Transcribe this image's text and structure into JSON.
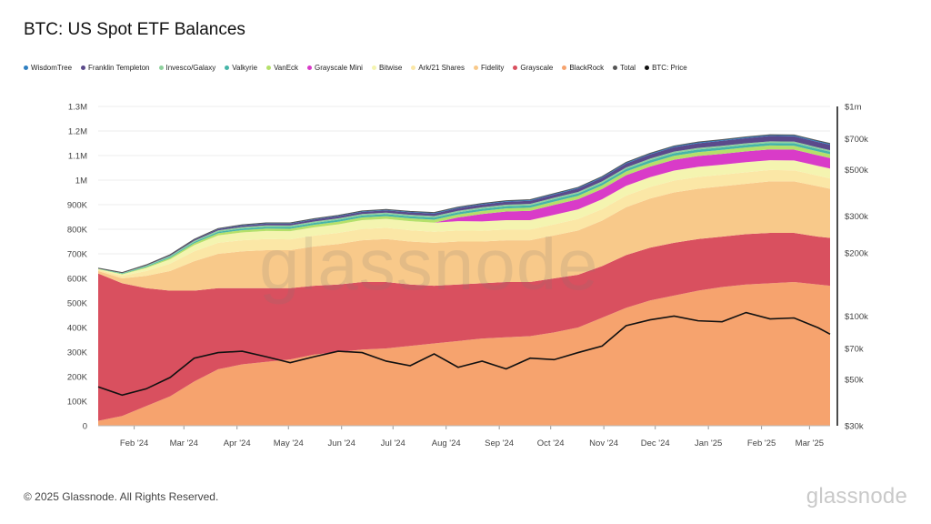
{
  "title": "BTC: US Spot ETF Balances",
  "footer": "© 2025 Glassnode. All Rights Reserved.",
  "brand": "glassnode",
  "legend": [
    {
      "label": "WisdomTree",
      "color": "#2f7fc1"
    },
    {
      "label": "Franklin Templeton",
      "color": "#5b4a8b"
    },
    {
      "label": "Invesco/Galaxy",
      "color": "#8fd19e"
    },
    {
      "label": "Valkyrie",
      "color": "#46b5a8"
    },
    {
      "label": "VanEck",
      "color": "#b5e06a"
    },
    {
      "label": "Grayscale Mini",
      "color": "#d93bc8"
    },
    {
      "label": "Bitwise",
      "color": "#f4f4b0"
    },
    {
      "label": "Ark/21 Shares",
      "color": "#fbe7a6"
    },
    {
      "label": "Fidelity",
      "color": "#f8c98a"
    },
    {
      "label": "Grayscale",
      "color": "#d9505f"
    },
    {
      "label": "BlackRock",
      "color": "#f6a36e"
    },
    {
      "label": "Total",
      "color": "#555555"
    },
    {
      "label": "BTC: Price",
      "color": "#111111"
    }
  ],
  "chart_data": {
    "type": "area",
    "title": "BTC: US Spot ETF Balances",
    "x": [
      "2024-01-11",
      "2024-01-25",
      "2024-02-08",
      "2024-02-22",
      "2024-03-07",
      "2024-03-21",
      "2024-04-04",
      "2024-04-18",
      "2024-05-02",
      "2024-05-16",
      "2024-05-30",
      "2024-06-13",
      "2024-06-27",
      "2024-07-11",
      "2024-07-25",
      "2024-08-08",
      "2024-08-22",
      "2024-09-05",
      "2024-09-19",
      "2024-10-03",
      "2024-10-17",
      "2024-10-31",
      "2024-11-14",
      "2024-11-28",
      "2024-12-12",
      "2024-12-26",
      "2025-01-09",
      "2025-01-23",
      "2025-02-06",
      "2025-02-20",
      "2025-03-06",
      "2025-03-13"
    ],
    "x_ticks": [
      "Feb '24",
      "Mar '24",
      "Apr '24",
      "May '24",
      "Jun '24",
      "Jul '24",
      "Aug '24",
      "Sep '24",
      "Oct '24",
      "Nov '24",
      "Dec '24",
      "Jan '25",
      "Feb '25",
      "Mar '25"
    ],
    "y_left_ticks": [
      "0",
      "100K",
      "200K",
      "300K",
      "400K",
      "500K",
      "600K",
      "700K",
      "800K",
      "900K",
      "1M",
      "1.1M",
      "1.2M",
      "1.3M"
    ],
    "y_left_range": [
      0,
      1300000
    ],
    "y_right_ticks": [
      "$30k",
      "$50k",
      "$70k",
      "$100k",
      "$200k",
      "$300k",
      "$500k",
      "$700k",
      "$1m"
    ],
    "y_right_range": [
      30000,
      1000000
    ],
    "y_right_scale": "log",
    "grid": true,
    "series": [
      {
        "name": "BlackRock",
        "values": [
          20000,
          40000,
          80000,
          120000,
          180000,
          230000,
          250000,
          260000,
          270000,
          290000,
          300000,
          310000,
          315000,
          325000,
          335000,
          345000,
          355000,
          360000,
          365000,
          380000,
          400000,
          440000,
          480000,
          510000,
          530000,
          550000,
          565000,
          575000,
          580000,
          585000,
          575000,
          570000
        ]
      },
      {
        "name": "Grayscale",
        "values": [
          600000,
          540000,
          480000,
          430000,
          370000,
          330000,
          310000,
          300000,
          290000,
          280000,
          275000,
          275000,
          270000,
          250000,
          235000,
          230000,
          225000,
          225000,
          220000,
          220000,
          215000,
          210000,
          215000,
          215000,
          215000,
          210000,
          205000,
          205000,
          205000,
          200000,
          195000,
          195000
        ]
      },
      {
        "name": "Fidelity",
        "values": [
          10000,
          20000,
          50000,
          80000,
          120000,
          140000,
          150000,
          155000,
          155000,
          160000,
          165000,
          170000,
          175000,
          175000,
          175000,
          175000,
          170000,
          170000,
          170000,
          175000,
          180000,
          185000,
          195000,
          200000,
          205000,
          205000,
          205000,
          205000,
          210000,
          210000,
          205000,
          200000
        ]
      },
      {
        "name": "Ark/21 Shares",
        "values": [
          5000,
          10000,
          20000,
          30000,
          40000,
          45000,
          45000,
          45000,
          44000,
          44000,
          45000,
          46000,
          46000,
          46000,
          45000,
          45000,
          44000,
          44000,
          44000,
          45000,
          47000,
          47000,
          47000,
          47000,
          48000,
          48000,
          47000,
          47000,
          46000,
          45000,
          43000,
          42000
        ]
      },
      {
        "name": "Bitwise",
        "values": [
          3000,
          6000,
          12000,
          18000,
          25000,
          30000,
          32000,
          33000,
          33000,
          34000,
          35000,
          36000,
          36000,
          37000,
          37000,
          38000,
          38000,
          38000,
          38000,
          39000,
          39000,
          40000,
          40000,
          40000,
          41000,
          41000,
          41000,
          41000,
          40000,
          40000,
          40000,
          40000
        ]
      },
      {
        "name": "Grayscale Mini",
        "values": [
          0,
          0,
          0,
          0,
          0,
          0,
          0,
          0,
          0,
          0,
          0,
          0,
          0,
          0,
          0,
          15000,
          30000,
          35000,
          38000,
          40000,
          41000,
          42000,
          43000,
          43000,
          44000,
          44000,
          44000,
          44000,
          44000,
          44000,
          43000,
          43000
        ]
      },
      {
        "name": "VanEck",
        "values": [
          1000,
          2000,
          4000,
          6000,
          8000,
          9000,
          9500,
          9800,
          10000,
          10200,
          10500,
          11000,
          11200,
          11500,
          12000,
          12300,
          12500,
          12800,
          13000,
          13500,
          14000,
          14500,
          15000,
          15500,
          16000,
          16000,
          16000,
          16000,
          16000,
          16000,
          15500,
          15500
        ]
      },
      {
        "name": "Valkyrie",
        "values": [
          1000,
          2000,
          3000,
          4000,
          5000,
          6000,
          6500,
          7000,
          7200,
          7500,
          7800,
          8000,
          8200,
          8400,
          8600,
          8800,
          9000,
          9200,
          9400,
          9600,
          9800,
          10000,
          10200,
          10400,
          10500,
          10500,
          10500,
          10500,
          10500,
          10500,
          10400,
          10300
        ]
      },
      {
        "name": "Invesco/Galaxy",
        "values": [
          1000,
          2000,
          3000,
          4000,
          5000,
          5500,
          6000,
          6000,
          6000,
          6000,
          6000,
          6000,
          6000,
          6000,
          6000,
          6000,
          6000,
          6000,
          6000,
          6000,
          6200,
          6300,
          6400,
          6500,
          6600,
          6600,
          6500,
          6500,
          6400,
          6300,
          6200,
          6100
        ]
      },
      {
        "name": "Franklin Templeton",
        "values": [
          500,
          1000,
          2000,
          3000,
          4000,
          5000,
          6000,
          7000,
          7500,
          8000,
          8500,
          9000,
          9500,
          10000,
          10500,
          11000,
          11500,
          12000,
          12500,
          13000,
          14000,
          15000,
          16000,
          17000,
          18000,
          19000,
          20000,
          21000,
          22000,
          22000,
          22000,
          22000
        ]
      },
      {
        "name": "WisdomTree",
        "values": [
          300,
          600,
          1000,
          1500,
          2000,
          2500,
          3000,
          3200,
          3400,
          3500,
          3600,
          3700,
          3800,
          3900,
          4000,
          4100,
          4200,
          4300,
          4400,
          4500,
          4600,
          4700,
          4800,
          4900,
          5000,
          5000,
          5000,
          5000,
          5000,
          5000,
          5000,
          5000
        ]
      }
    ],
    "price_series": {
      "name": "BTC: Price",
      "values": [
        46000,
        42000,
        45000,
        51000,
        63000,
        67000,
        68000,
        64000,
        60000,
        64000,
        68000,
        67000,
        61000,
        58000,
        66000,
        57000,
        61000,
        56000,
        63000,
        62000,
        67000,
        72000,
        90000,
        96000,
        100000,
        95000,
        94000,
        104000,
        97000,
        98000,
        88000,
        82000
      ]
    }
  }
}
